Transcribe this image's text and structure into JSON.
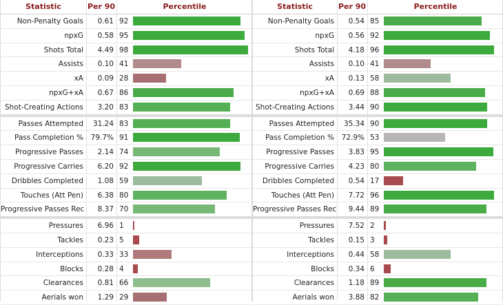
{
  "headers": {
    "statistic": "Statistic",
    "per90": "Per 90",
    "percentile": "Percentile"
  },
  "colors": {
    "header_text": "#8a1c1c",
    "bar_green": "#3daa3d",
    "bar_light_green": "#78b877",
    "bar_grey_green": "#9dbb9d",
    "bar_grey": "#b6b6b6",
    "bar_mauve": "#b28b8d",
    "bar_red": "#a84a4e"
  },
  "tables": [
    {
      "groups": [
        [
          {
            "stat": "Non-Penalty Goals",
            "per90": "0.61",
            "percentile": "92",
            "pct": 92,
            "color": "#3daa3d"
          },
          {
            "stat": "npxG",
            "per90": "0.58",
            "percentile": "95",
            "pct": 95,
            "color": "#3daa3d"
          },
          {
            "stat": "Shots Total",
            "per90": "4.49",
            "percentile": "98",
            "pct": 98,
            "color": "#3daa3d"
          },
          {
            "stat": "Assists",
            "per90": "0.10",
            "percentile": "41",
            "pct": 41,
            "color": "#b28b8d"
          },
          {
            "stat": "xA",
            "per90": "0.09",
            "percentile": "28",
            "pct": 28,
            "color": "#a86f72"
          },
          {
            "stat": "npxG+xA",
            "per90": "0.67",
            "percentile": "86",
            "pct": 86,
            "color": "#49ac49"
          },
          {
            "stat": "Shot-Creating Actions",
            "per90": "3.20",
            "percentile": "83",
            "pct": 83,
            "color": "#55b055"
          }
        ],
        [
          {
            "stat": "Passes Attempted",
            "per90": "31.24",
            "percentile": "83",
            "pct": 83,
            "color": "#55b055"
          },
          {
            "stat": "Pass Completion %",
            "per90": "79.7%",
            "percentile": "91",
            "pct": 91,
            "color": "#3daa3d"
          },
          {
            "stat": "Progressive Passes",
            "per90": "2.14",
            "percentile": "74",
            "pct": 74,
            "color": "#78b877"
          },
          {
            "stat": "Progressive Carries",
            "per90": "6.20",
            "percentile": "92",
            "pct": 92,
            "color": "#3daa3d"
          },
          {
            "stat": "Dribbles Completed",
            "per90": "1.08",
            "percentile": "59",
            "pct": 59,
            "color": "#9dbb9d"
          },
          {
            "stat": "Touches (Att Pen)",
            "per90": "6.38",
            "percentile": "80",
            "pct": 80,
            "color": "#5fb25f"
          },
          {
            "stat": "Progressive Passes Rec",
            "per90": "8.37",
            "percentile": "70",
            "pct": 70,
            "color": "#78b877"
          }
        ],
        [
          {
            "stat": "Pressures",
            "per90": "6.96",
            "percentile": "1",
            "pct": 1,
            "color": "#a84a4e"
          },
          {
            "stat": "Tackles",
            "per90": "0.23",
            "percentile": "5",
            "pct": 5,
            "color": "#a84a4e"
          },
          {
            "stat": "Interceptions",
            "per90": "0.33",
            "percentile": "33",
            "pct": 33,
            "color": "#b07a7c"
          },
          {
            "stat": "Blocks",
            "per90": "0.28",
            "percentile": "4",
            "pct": 4,
            "color": "#a84a4e"
          },
          {
            "stat": "Clearances",
            "per90": "0.81",
            "percentile": "66",
            "pct": 66,
            "color": "#8fbe8e"
          },
          {
            "stat": "Aerials won",
            "per90": "1.29",
            "percentile": "29",
            "pct": 29,
            "color": "#a86f72"
          }
        ]
      ]
    },
    {
      "groups": [
        [
          {
            "stat": "Non-Penalty Goals",
            "per90": "0.54",
            "percentile": "85",
            "pct": 85,
            "color": "#49ac49"
          },
          {
            "stat": "npxG",
            "per90": "0.56",
            "percentile": "92",
            "pct": 92,
            "color": "#3daa3d"
          },
          {
            "stat": "Shots Total",
            "per90": "4.18",
            "percentile": "96",
            "pct": 96,
            "color": "#3daa3d"
          },
          {
            "stat": "Assists",
            "per90": "0.10",
            "percentile": "41",
            "pct": 41,
            "color": "#b28b8d"
          },
          {
            "stat": "xA",
            "per90": "0.13",
            "percentile": "58",
            "pct": 58,
            "color": "#9dbb9d"
          },
          {
            "stat": "npxG+xA",
            "per90": "0.69",
            "percentile": "88",
            "pct": 88,
            "color": "#49ac49"
          },
          {
            "stat": "Shot-Creating Actions",
            "per90": "3.44",
            "percentile": "90",
            "pct": 90,
            "color": "#3daa3d"
          }
        ],
        [
          {
            "stat": "Passes Attempted",
            "per90": "35.34",
            "percentile": "90",
            "pct": 90,
            "color": "#3daa3d"
          },
          {
            "stat": "Pass Completion %",
            "per90": "72.9%",
            "percentile": "53",
            "pct": 53,
            "color": "#b6b6b6"
          },
          {
            "stat": "Progressive Passes",
            "per90": "3.83",
            "percentile": "95",
            "pct": 95,
            "color": "#3daa3d"
          },
          {
            "stat": "Progressive Carries",
            "per90": "4.23",
            "percentile": "80",
            "pct": 80,
            "color": "#5fb25f"
          },
          {
            "stat": "Dribbles Completed",
            "per90": "0.54",
            "percentile": "17",
            "pct": 17,
            "color": "#a84a4e"
          },
          {
            "stat": "Touches (Att Pen)",
            "per90": "7.72",
            "percentile": "96",
            "pct": 96,
            "color": "#3daa3d"
          },
          {
            "stat": "Progressive Passes Rec",
            "per90": "9.44",
            "percentile": "89",
            "pct": 89,
            "color": "#49ac49"
          }
        ],
        [
          {
            "stat": "Pressures",
            "per90": "7.52",
            "percentile": "2",
            "pct": 2,
            "color": "#a84a4e"
          },
          {
            "stat": "Tackles",
            "per90": "0.15",
            "percentile": "3",
            "pct": 3,
            "color": "#a84a4e"
          },
          {
            "stat": "Interceptions",
            "per90": "0.44",
            "percentile": "58",
            "pct": 58,
            "color": "#9dbb9d"
          },
          {
            "stat": "Blocks",
            "per90": "0.34",
            "percentile": "6",
            "pct": 6,
            "color": "#a84a4e"
          },
          {
            "stat": "Clearances",
            "per90": "1.18",
            "percentile": "89",
            "pct": 89,
            "color": "#49ac49"
          },
          {
            "stat": "Aerials won",
            "per90": "3.88",
            "percentile": "82",
            "pct": 82,
            "color": "#55b055"
          }
        ]
      ]
    }
  ]
}
